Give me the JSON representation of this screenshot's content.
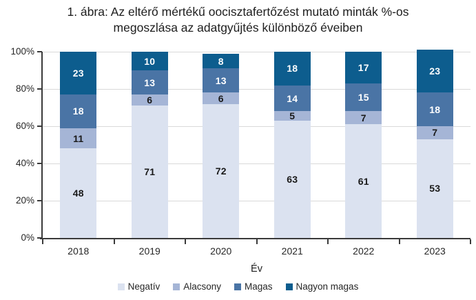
{
  "figure": {
    "title_line1": "1. ábra: Az eltérő mértékű oocisztafertőzést mutató minták %-os",
    "title_line2": "megoszlása az adatgyűjtés különböző éveiben"
  },
  "chart_data": {
    "type": "bar",
    "stacked": true,
    "title": "1. ábra: Az eltérő mértékű oocisztafertőzést mutató minták %-os megoszlása az adatgyűjtés különböző éveiben",
    "xlabel": "Év",
    "ylabel": "",
    "ylim": [
      0,
      100
    ],
    "yticks": [
      "0%",
      "20%",
      "40%",
      "60%",
      "80%",
      "100%"
    ],
    "grid": true,
    "legend_position": "bottom",
    "categories": [
      "2018",
      "2019",
      "2020",
      "2021",
      "2022",
      "2023"
    ],
    "series": [
      {
        "name": "Negatív",
        "color": "#dbe2f0",
        "label_color": "#1a1a1a",
        "values": [
          48,
          71,
          72,
          63,
          61,
          53
        ]
      },
      {
        "name": "Alacsony",
        "color": "#a5b5d6",
        "label_color": "#1a1a1a",
        "values": [
          11,
          6,
          6,
          5,
          7,
          7
        ]
      },
      {
        "name": "Magas",
        "color": "#4a74a5",
        "label_color": "#ffffff",
        "values": [
          18,
          13,
          13,
          14,
          15,
          18
        ]
      },
      {
        "name": "Nagyon magas",
        "color": "#0d5d8e",
        "label_color": "#ffffff",
        "values": [
          23,
          10,
          8,
          18,
          17,
          23
        ]
      }
    ],
    "colors": {
      "axis": "#3a3a3a",
      "grid": "#d9d9d9",
      "background": "#ffffff"
    }
  }
}
